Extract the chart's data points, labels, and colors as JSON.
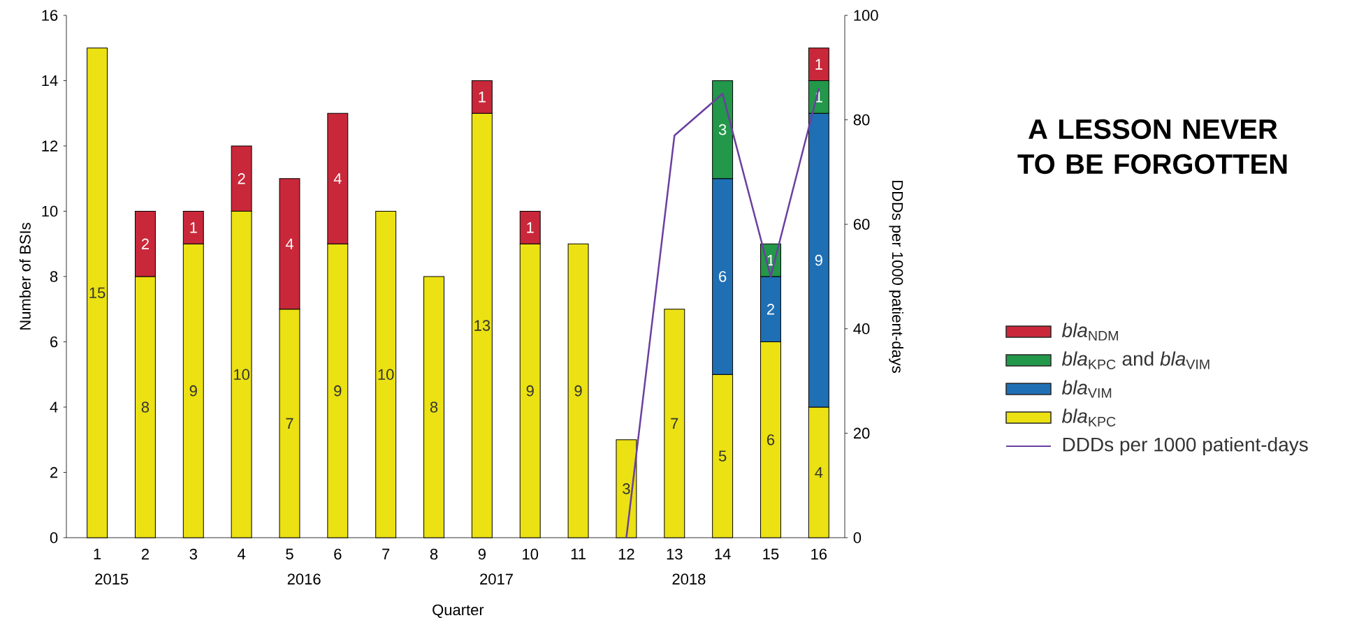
{
  "chart_data": {
    "type": "bar",
    "title": "A LESSON NEVER TO BE FORGOTTEN",
    "xlabel": "Quarter",
    "ylabel": "Number of BSIs",
    "y2label": "DDDs per 1000 patient-days",
    "categories": [
      "1",
      "2",
      "3",
      "4",
      "5",
      "6",
      "7",
      "8",
      "9",
      "10",
      "11",
      "12",
      "13",
      "14",
      "15",
      "16"
    ],
    "stacked": true,
    "legend": "right",
    "ylim": [
      0,
      16
    ],
    "yticks": [
      0,
      2,
      4,
      6,
      8,
      10,
      12,
      14,
      16
    ],
    "y2lim": [
      0,
      100
    ],
    "y2ticks": [
      0,
      20,
      40,
      60,
      80,
      100
    ],
    "series": [
      {
        "name": "*bla*$_{KPC}$",
        "color": "#ebe113",
        "values": [
          15,
          8,
          9,
          10,
          7,
          9,
          10,
          8,
          13,
          9,
          9,
          3,
          7,
          5,
          6,
          4
        ],
        "value_labels": [
          "15",
          "8",
          "9",
          "10",
          "7",
          "9",
          "10",
          "8",
          "13",
          "9",
          "9",
          "3",
          "7",
          "5",
          "6",
          "4"
        ]
      },
      {
        "name": "*bla*$_{VIM}$",
        "color": "#1f6fb4",
        "values": [
          null,
          null,
          null,
          null,
          null,
          null,
          null,
          null,
          null,
          null,
          null,
          null,
          null,
          6,
          2,
          9
        ],
        "value_labels": [
          null,
          null,
          null,
          null,
          null,
          null,
          null,
          null,
          null,
          null,
          null,
          null,
          null,
          "6",
          "2",
          "9"
        ]
      },
      {
        "name": "*bla*$_{KPC}$ and *bla*$_{VIM}$",
        "color": "#23974a",
        "values": [
          null,
          null,
          null,
          null,
          null,
          null,
          null,
          null,
          null,
          null,
          null,
          null,
          null,
          3,
          1,
          1
        ],
        "value_labels": [
          null,
          null,
          null,
          null,
          null,
          null,
          null,
          null,
          null,
          null,
          null,
          null,
          null,
          "3",
          "1",
          "1"
        ]
      },
      {
        "name": "*bla*$_{NDM}$",
        "color": "#c8283a",
        "values": [
          null,
          2,
          1,
          2,
          4,
          4,
          null,
          null,
          1,
          1,
          null,
          null,
          null,
          null,
          null,
          1
        ],
        "value_labels": [
          null,
          "2",
          "1",
          "2",
          "4",
          "4",
          null,
          null,
          "1",
          "1",
          null,
          null,
          null,
          null,
          null,
          "1"
        ]
      },
      {
        "name": "DDDs per 1000 patient-days",
        "type": "line",
        "axis": "y2",
        "color": "#6b3fa0",
        "values": [
          null,
          null,
          null,
          null,
          null,
          null,
          null,
          null,
          null,
          null,
          null,
          0,
          77,
          85,
          50,
          86
        ]
      }
    ],
    "annotations": [
      "2015",
      "2016",
      "2017",
      "2018"
    ]
  }
}
